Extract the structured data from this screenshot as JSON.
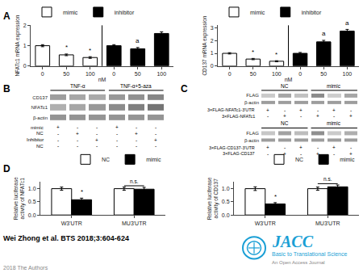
{
  "title": "Wei Zhong et al. BTS 2018;3:604-624",
  "annotations": [
    {
      "text": "2018 The Authors",
      "color": "#888888"
    },
    {
      "text": "JACC",
      "color": "#1a9fd5"
    },
    {
      "text": "Basic to Translational Science",
      "color": "#1a9fd5"
    },
    {
      "text": "An Open Access Journal",
      "color": "#888888"
    }
  ],
  "chart_data": [
    {
      "type": "bar",
      "title": "A",
      "ylabel": "NFATc1 mRNA expression",
      "xlabel": "nM",
      "categories": [
        "0",
        "50",
        "100",
        "0",
        "50",
        "100"
      ],
      "series": [
        {
          "name": "mimic",
          "color": "#ffffff",
          "values": [
            1.0,
            0.55,
            0.42,
            null,
            null,
            null
          ],
          "errors": [
            0.05,
            0.04,
            0.04,
            null,
            null,
            null
          ],
          "significance": [
            null,
            "*",
            "*",
            null,
            null,
            null
          ]
        },
        {
          "name": "inhibitor",
          "color": "#000000",
          "values": [
            null,
            null,
            null,
            1.0,
            0.85,
            1.6
          ],
          "errors": [
            null,
            null,
            null,
            0.05,
            0.06,
            0.08
          ],
          "significance": [
            null,
            null,
            null,
            null,
            "a",
            null
          ]
        }
      ],
      "ylim": [
        0,
        2.0
      ],
      "yticks": [
        0,
        1,
        2
      ],
      "grid": false,
      "legend": "upper left"
    },
    {
      "type": "bar",
      "ylabel": "CD137 mRNA expression",
      "xlabel": "nM",
      "categories": [
        "0",
        "50",
        "100",
        "0",
        "50",
        "100"
      ],
      "series": [
        {
          "name": "mimic",
          "color": "#ffffff",
          "values": [
            1.0,
            0.55,
            0.38,
            null,
            null,
            null
          ],
          "errors": [
            0.05,
            0.05,
            0.04,
            null,
            null,
            null
          ],
          "significance": [
            null,
            "*",
            "*",
            null,
            null,
            null
          ]
        },
        {
          "name": "inhibitor",
          "color": "#000000",
          "values": [
            null,
            null,
            null,
            1.0,
            1.9,
            2.75
          ],
          "errors": [
            null,
            null,
            null,
            0.07,
            0.12,
            0.13
          ],
          "significance": [
            null,
            null,
            null,
            null,
            "a",
            "a"
          ]
        }
      ],
      "ylim": [
        0,
        3.2
      ],
      "yticks": [
        0,
        1,
        2,
        3
      ],
      "grid": false,
      "legend": "upper left"
    },
    {
      "type": "heatmap",
      "title": "B",
      "groups": [
        "TNF-α",
        "TNF-α+5-aza"
      ],
      "rows": [
        "CD137",
        "NFATc1",
        "β-actin"
      ],
      "cells": [
        [
          0.55,
          0.5,
          0.48,
          0.58,
          0.62,
          0.68
        ],
        [
          0.45,
          0.5,
          0.58,
          0.65,
          0.72,
          0.78
        ],
        [
          0.6,
          0.6,
          0.6,
          0.6,
          0.6,
          0.6
        ]
      ],
      "color_range": [
        0,
        1
      ],
      "colors": [
        "#ffffff",
        "#4d4d4d"
      ],
      "tick_labels": "y",
      "conditions": [
        {
          "name": "mimic",
          "symbols": [
            "+",
            "-",
            "-",
            "+",
            "-",
            "-"
          ]
        },
        {
          "name": "NC",
          "symbols": [
            "-",
            "+",
            "-",
            "-",
            "+",
            "-"
          ]
        },
        {
          "name": "Inhibitor",
          "symbols": [
            "-",
            "-",
            "+",
            "-",
            "-",
            "+"
          ]
        },
        {
          "name": "NC",
          "symbols": [
            "-",
            "-",
            "-",
            "-",
            "-",
            "-"
          ]
        }
      ]
    },
    {
      "type": "heatmap",
      "title": "C",
      "groups": [
        "NC",
        "mimic"
      ],
      "rows": [
        "FLAG",
        "β-actin"
      ],
      "cells": [
        [
          0.3,
          0.5,
          0.35,
          0.65,
          0.28,
          0.5
        ],
        [
          0.55,
          0.55,
          0.55,
          0.55,
          0.55,
          0.55
        ]
      ],
      "color_range": [
        0,
        1
      ],
      "colors": [
        "#ffffff",
        "#4d4d4d"
      ],
      "tick_labels": "y",
      "conditions": [
        {
          "name": "3×FLAG-NFATc1-3'UTR",
          "symbols": [
            "+",
            "-",
            "+",
            "-",
            "+",
            "-"
          ]
        },
        {
          "name": "3×FLAG-NFATc1",
          "symbols": [
            "-",
            "+",
            "-",
            "+",
            "-",
            "+"
          ]
        }
      ]
    },
    {
      "type": "heatmap",
      "groups": [
        "NC",
        "mimic"
      ],
      "rows": [
        "FLAG",
        "β-actin"
      ],
      "cells": [
        [
          0.32,
          0.52,
          0.37,
          0.63,
          0.3,
          0.45
        ],
        [
          0.55,
          0.55,
          0.55,
          0.55,
          0.55,
          0.55
        ]
      ],
      "color_range": [
        0,
        1
      ],
      "colors": [
        "#ffffff",
        "#4d4d4d"
      ],
      "tick_labels": "y",
      "conditions": [
        {
          "name": "3×FLAG-CD137-3'UTR",
          "symbols": [
            "+",
            "-",
            "+",
            "-",
            "+",
            "-"
          ]
        },
        {
          "name": "3×FLAG-CD137",
          "symbols": [
            "-",
            "+",
            "-",
            "+",
            "-",
            "+"
          ]
        }
      ]
    },
    {
      "type": "bar",
      "title": "D",
      "ylabel": "Relative luciferase\nactivity of NFATc1",
      "categories": [
        "W3'UTR",
        "MU3'UTR"
      ],
      "series": [
        {
          "name": "NC",
          "color": "#ffffff",
          "values": [
            1.0,
            1.0
          ],
          "errors": [
            0.06,
            0.06
          ]
        },
        {
          "name": "mimic",
          "color": "#000000",
          "values": [
            0.58,
            0.98
          ],
          "errors": [
            0.06,
            0.07
          ],
          "significance": [
            "*",
            null
          ]
        }
      ],
      "annotations": [
        {
          "text": "n.s.",
          "category": "MU3'UTR"
        }
      ],
      "ylim": [
        0,
        1.25
      ],
      "yticks": [
        {
          "value": 0.0,
          "label": "0.0"
        },
        0.5,
        {
          "value": 1.0,
          "label": "1.0"
        }
      ],
      "grid": false,
      "legend": "upper right"
    },
    {
      "type": "bar",
      "ylabel": "Relative luciferase\nactivity of CD137",
      "categories": [
        "W3'UTR",
        "MU3'UTR"
      ],
      "series": [
        {
          "name": "NC",
          "color": "#ffffff",
          "values": [
            1.0,
            1.0
          ],
          "errors": [
            0.07,
            0.06
          ]
        },
        {
          "name": "mimic",
          "color": "#000000",
          "values": [
            0.42,
            1.07
          ],
          "errors": [
            0.05,
            0.07
          ],
          "significance": [
            "*",
            null
          ]
        }
      ],
      "annotations": [
        {
          "text": "n.s.",
          "category": "MU3'UTR"
        }
      ],
      "ylim": [
        0,
        1.25
      ],
      "yticks": [
        {
          "value": 0.0,
          "label": "0.0"
        },
        0.5,
        {
          "value": 1.0,
          "label": "1.0"
        }
      ],
      "grid": false,
      "legend": "upper right"
    }
  ]
}
